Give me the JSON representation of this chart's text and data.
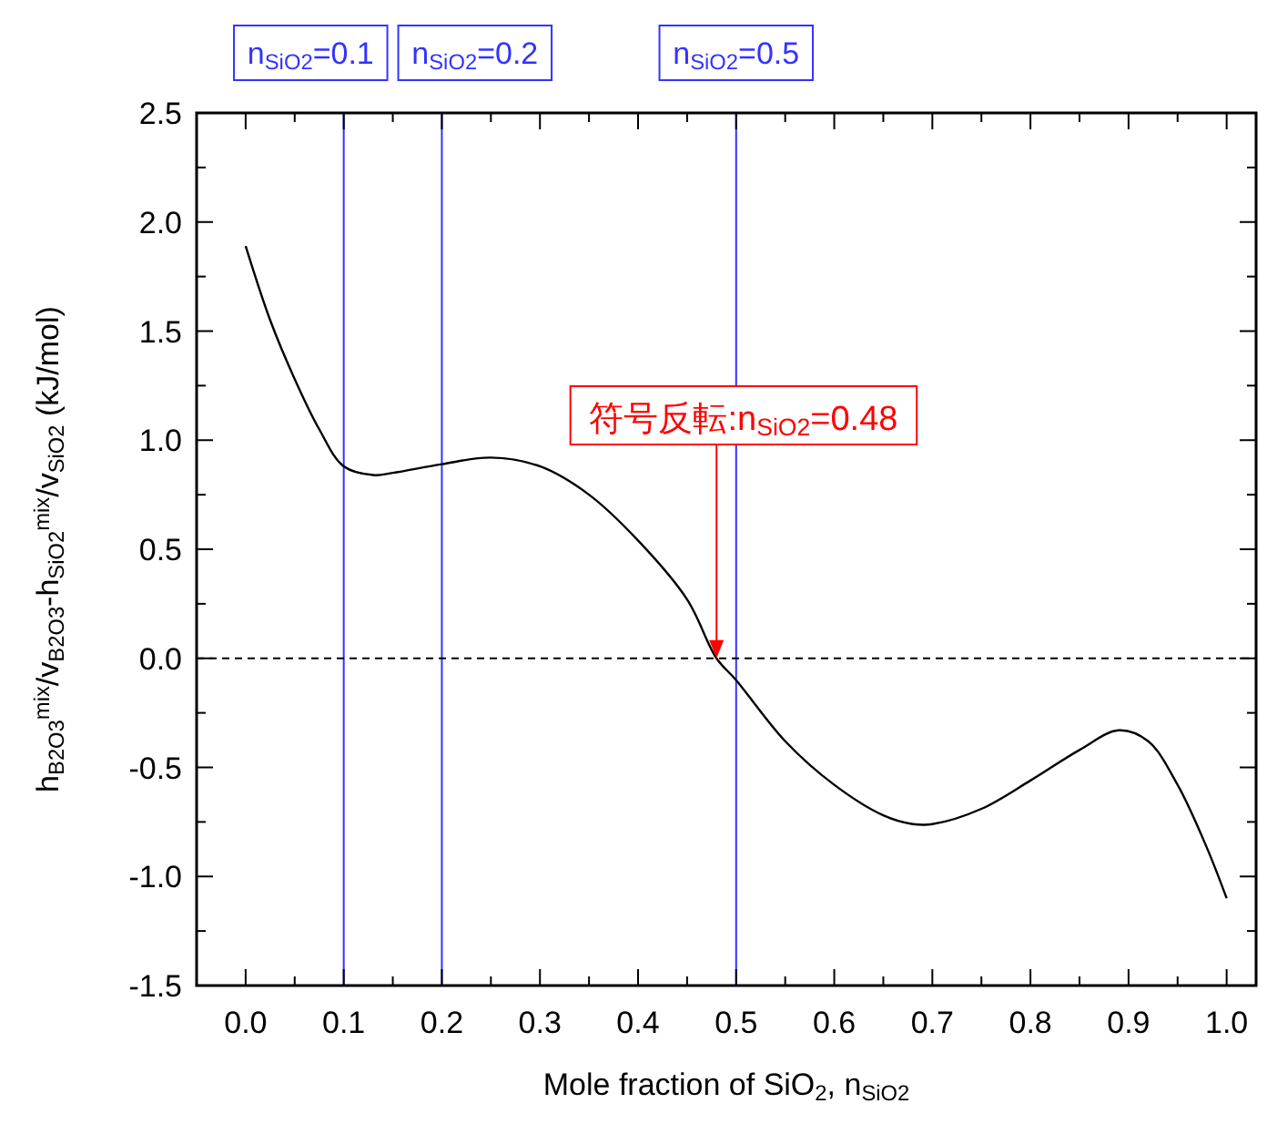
{
  "chart_data": {
    "type": "line",
    "xlabel": "Mole fraction of SiO$_{2}$, n$_{SiO2}$",
    "ylabel": "h$_{B2O3}$$^{mix}$/v$_{B2O3}$-h$_{SiO2}$$^{mix}$/v$_{SiO2}$ (kJ/mol)",
    "x": [
      0,
      0.025,
      0.05,
      0.075,
      0.1,
      0.13,
      0.15,
      0.2,
      0.25,
      0.3,
      0.35,
      0.4,
      0.45,
      0.48,
      0.5,
      0.55,
      0.6,
      0.65,
      0.68,
      0.7,
      0.75,
      0.8,
      0.85,
      0.89,
      0.92,
      0.95,
      0.98,
      1.0
    ],
    "series": [
      {
        "color": "#000000",
        "values": [
          1.89,
          1.55,
          1.28,
          1.05,
          0.88,
          0.84,
          0.85,
          0.89,
          0.92,
          0.88,
          0.75,
          0.54,
          0.27,
          0.0,
          -0.1,
          -0.38,
          -0.58,
          -0.72,
          -0.76,
          -0.76,
          -0.69,
          -0.56,
          -0.42,
          -0.33,
          -0.38,
          -0.58,
          -0.87,
          -1.1
        ]
      }
    ],
    "xlim": [
      -0.05,
      1.03
    ],
    "ylim": [
      -1.5,
      2.5
    ],
    "xticks": [
      {
        "value": 0,
        "label": "0.0"
      },
      {
        "value": 0.05,
        "label": null
      },
      0.1,
      {
        "value": 0.15,
        "label": null
      },
      0.2,
      {
        "value": 0.25,
        "label": null
      },
      0.3,
      {
        "value": 0.35,
        "label": null
      },
      0.4,
      {
        "value": 0.45,
        "label": null
      },
      0.5,
      {
        "value": 0.55,
        "label": null
      },
      0.6,
      {
        "value": 0.65,
        "label": null
      },
      0.7,
      {
        "value": 0.75,
        "label": null
      },
      0.8,
      {
        "value": 0.85,
        "label": null
      },
      0.9,
      {
        "value": 0.95,
        "label": null
      },
      {
        "value": 1,
        "label": "1.0"
      }
    ],
    "yticks": [
      -1.5,
      {
        "value": -1.25,
        "label": null
      },
      {
        "value": -1,
        "label": "-1.0"
      },
      {
        "value": -0.75,
        "label": null
      },
      -0.5,
      {
        "value": -0.25,
        "label": null
      },
      {
        "value": 0,
        "label": "0.0"
      },
      {
        "value": 0.25,
        "label": null
      },
      0.5,
      {
        "value": 0.75,
        "label": null
      },
      {
        "value": 1,
        "label": "1.0"
      },
      {
        "value": 1.25,
        "label": null
      },
      1.5,
      {
        "value": 1.75,
        "label": null
      },
      {
        "value": 2,
        "label": "2.0"
      },
      {
        "value": 2.25,
        "label": null
      },
      2.5
    ],
    "ref_lines": [
      {
        "axis": "x",
        "value": 0.1,
        "label": "n$_{SiO2}$=0.1",
        "color": "#3333ff"
      },
      {
        "axis": "x",
        "value": 0.2,
        "label": "n$_{SiO2}$=0.2",
        "color": "#3333ff"
      },
      {
        "axis": "x",
        "value": 0.5,
        "label": "n$_{SiO2}$=0.5",
        "color": "#3333ff"
      },
      {
        "axis": "y",
        "value": 0,
        "color": "#000000",
        "line_style": "dashed"
      }
    ],
    "annotations": [
      {
        "text": "符号反転:n$_{SiO2}$=0.48",
        "x": 0.48,
        "y": 0
      }
    ],
    "marker": "none",
    "line_style": "solid",
    "grid": false
  }
}
